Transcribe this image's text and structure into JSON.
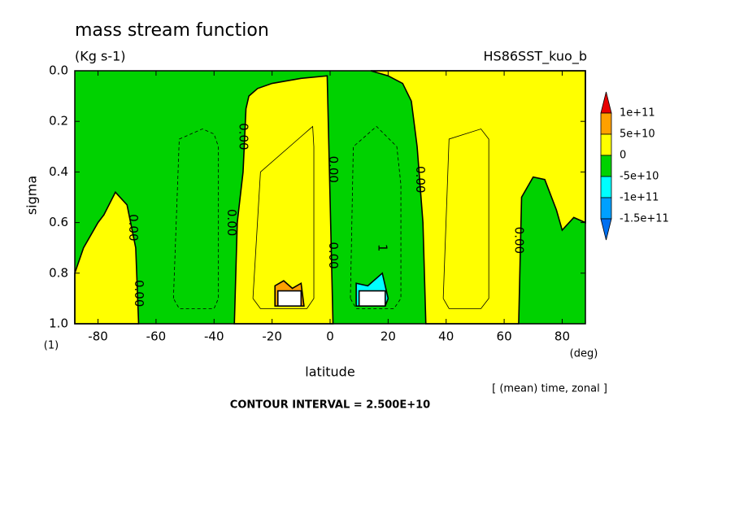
{
  "chart_data": {
    "type": "contour",
    "title": "mass stream function",
    "subtitle": "(Kg s-1)",
    "run_label": "HS86SST_kuo_b",
    "x_label": "latitude",
    "y_label": "sigma",
    "x_unit": "(deg)",
    "y_unit": "(1)",
    "note": "[ (mean) time, zonal ]",
    "footer": "CONTOUR INTERVAL = 2.500E+10",
    "xlim": [
      -88,
      88
    ],
    "ylim": [
      1.0,
      0.0
    ],
    "xticks": [
      -80,
      -60,
      -40,
      -20,
      0,
      20,
      40,
      60,
      80
    ],
    "yticks": [
      {
        "value": 0,
        "label": "0.0"
      },
      {
        "value": 0.2,
        "label": "0.2"
      },
      {
        "value": 0.4,
        "label": "0.4"
      },
      {
        "value": 0.6,
        "label": "0.6"
      },
      {
        "value": 0.8,
        "label": "0.8"
      },
      {
        "value": 1,
        "label": "1.0"
      }
    ],
    "background_color": "#00d200",
    "regions": [
      {
        "color": "#ffff00",
        "x": [
          -88,
          -88,
          -85,
          -80,
          -78,
          -74,
          -70,
          -67,
          -66
        ],
        "y": [
          1.0,
          0.8,
          0.7,
          0.6,
          0.57,
          0.48,
          0.53,
          0.7,
          1.0
        ]
      },
      {
        "color": "#ffff00",
        "x": [
          -33,
          -32,
          -30,
          -29,
          -28,
          -25,
          -20,
          -10,
          -1,
          1
        ],
        "y": [
          1.0,
          0.6,
          0.4,
          0.15,
          0.1,
          0.07,
          0.05,
          0.03,
          0.02,
          1.0
        ]
      },
      {
        "color": "#ffff00",
        "x": [
          33,
          32,
          30,
          28,
          25,
          20,
          14,
          88,
          88,
          84,
          80,
          78,
          74,
          70,
          66,
          65
        ],
        "y": [
          1.0,
          0.6,
          0.3,
          0.12,
          0.05,
          0.02,
          0,
          0,
          0.6,
          0.58,
          0.63,
          0.55,
          0.43,
          0.42,
          0.5,
          1.0
        ]
      },
      {
        "color": "#ffa000",
        "x": [
          -19,
          -19,
          -16,
          -13,
          -10,
          -9
        ],
        "y": [
          0.93,
          0.85,
          0.83,
          0.86,
          0.84,
          0.93
        ]
      },
      {
        "color": "#00ffff",
        "x": [
          9,
          9,
          13,
          18,
          20,
          19
        ],
        "y": [
          0.93,
          0.84,
          0.85,
          0.8,
          0.9,
          0.93
        ]
      },
      {
        "color": "#ffffff",
        "x": [
          -18,
          -18,
          -10,
          -10
        ],
        "y": [
          0.93,
          0.87,
          0.87,
          0.93
        ]
      },
      {
        "color": "#ffffff",
        "x": [
          10,
          10,
          19,
          19
        ],
        "y": [
          0.93,
          0.87,
          0.87,
          0.93
        ]
      }
    ],
    "contours": [
      {
        "dashed": true,
        "x": [
          -54,
          -52,
          -44,
          -40,
          -38.5,
          -38.5,
          -40,
          -52,
          -54
        ],
        "y": [
          0.9,
          0.27,
          0.23,
          0.25,
          0.3,
          0.9,
          0.94,
          0.94,
          0.9
        ]
      },
      {
        "dashed": false,
        "x": [
          -26.6,
          -24,
          -9,
          -6,
          -5.6,
          -5.6,
          -8,
          -24,
          -26.6
        ],
        "y": [
          0.9,
          0.4,
          0.25,
          0.22,
          0.3,
          0.9,
          0.94,
          0.94,
          0.9
        ]
      },
      {
        "dashed": true,
        "x": [
          7,
          8,
          16,
          23,
          24.4,
          24.4,
          22,
          9,
          7
        ],
        "y": [
          0.9,
          0.3,
          0.22,
          0.3,
          0.45,
          0.9,
          0.94,
          0.94,
          0.9
        ]
      },
      {
        "dashed": false,
        "x": [
          39,
          41,
          52,
          54.7,
          54.7,
          52,
          41,
          39
        ],
        "y": [
          0.9,
          0.27,
          0.23,
          0.27,
          0.9,
          0.94,
          0.94,
          0.9
        ]
      }
    ],
    "contour_labels": [
      {
        "text": "0.00",
        "x": -68,
        "y": 0.62
      },
      {
        "text": "0.00",
        "x": -66,
        "y": 0.88
      },
      {
        "text": "0.00",
        "x": -30,
        "y": 0.26
      },
      {
        "text": "0.00",
        "x": -34,
        "y": 0.6
      },
      {
        "text": "0.00",
        "x": 1,
        "y": 0.39
      },
      {
        "text": "0.00",
        "x": 1,
        "y": 0.73
      },
      {
        "text": "0.00",
        "x": 31,
        "y": 0.43
      },
      {
        "text": "0.00",
        "x": 65,
        "y": 0.67
      },
      {
        "text": "1",
        "x": 18,
        "y": 0.7
      }
    ],
    "colorbar": {
      "colors": [
        "#e80000",
        "#ffa000",
        "#ffff00",
        "#00d200",
        "#00ffff",
        "#00a0ff",
        "#0070f0"
      ],
      "ticks": [
        {
          "value": 100000000000,
          "label": "1e+11"
        },
        {
          "value": 50000000000,
          "label": "5e+10"
        },
        0,
        {
          "value": -50000000000,
          "label": "-5e+10"
        },
        {
          "value": -100000000000,
          "label": "-1e+11"
        },
        {
          "value": -150000000000,
          "label": "-1.5e+11"
        }
      ]
    }
  }
}
